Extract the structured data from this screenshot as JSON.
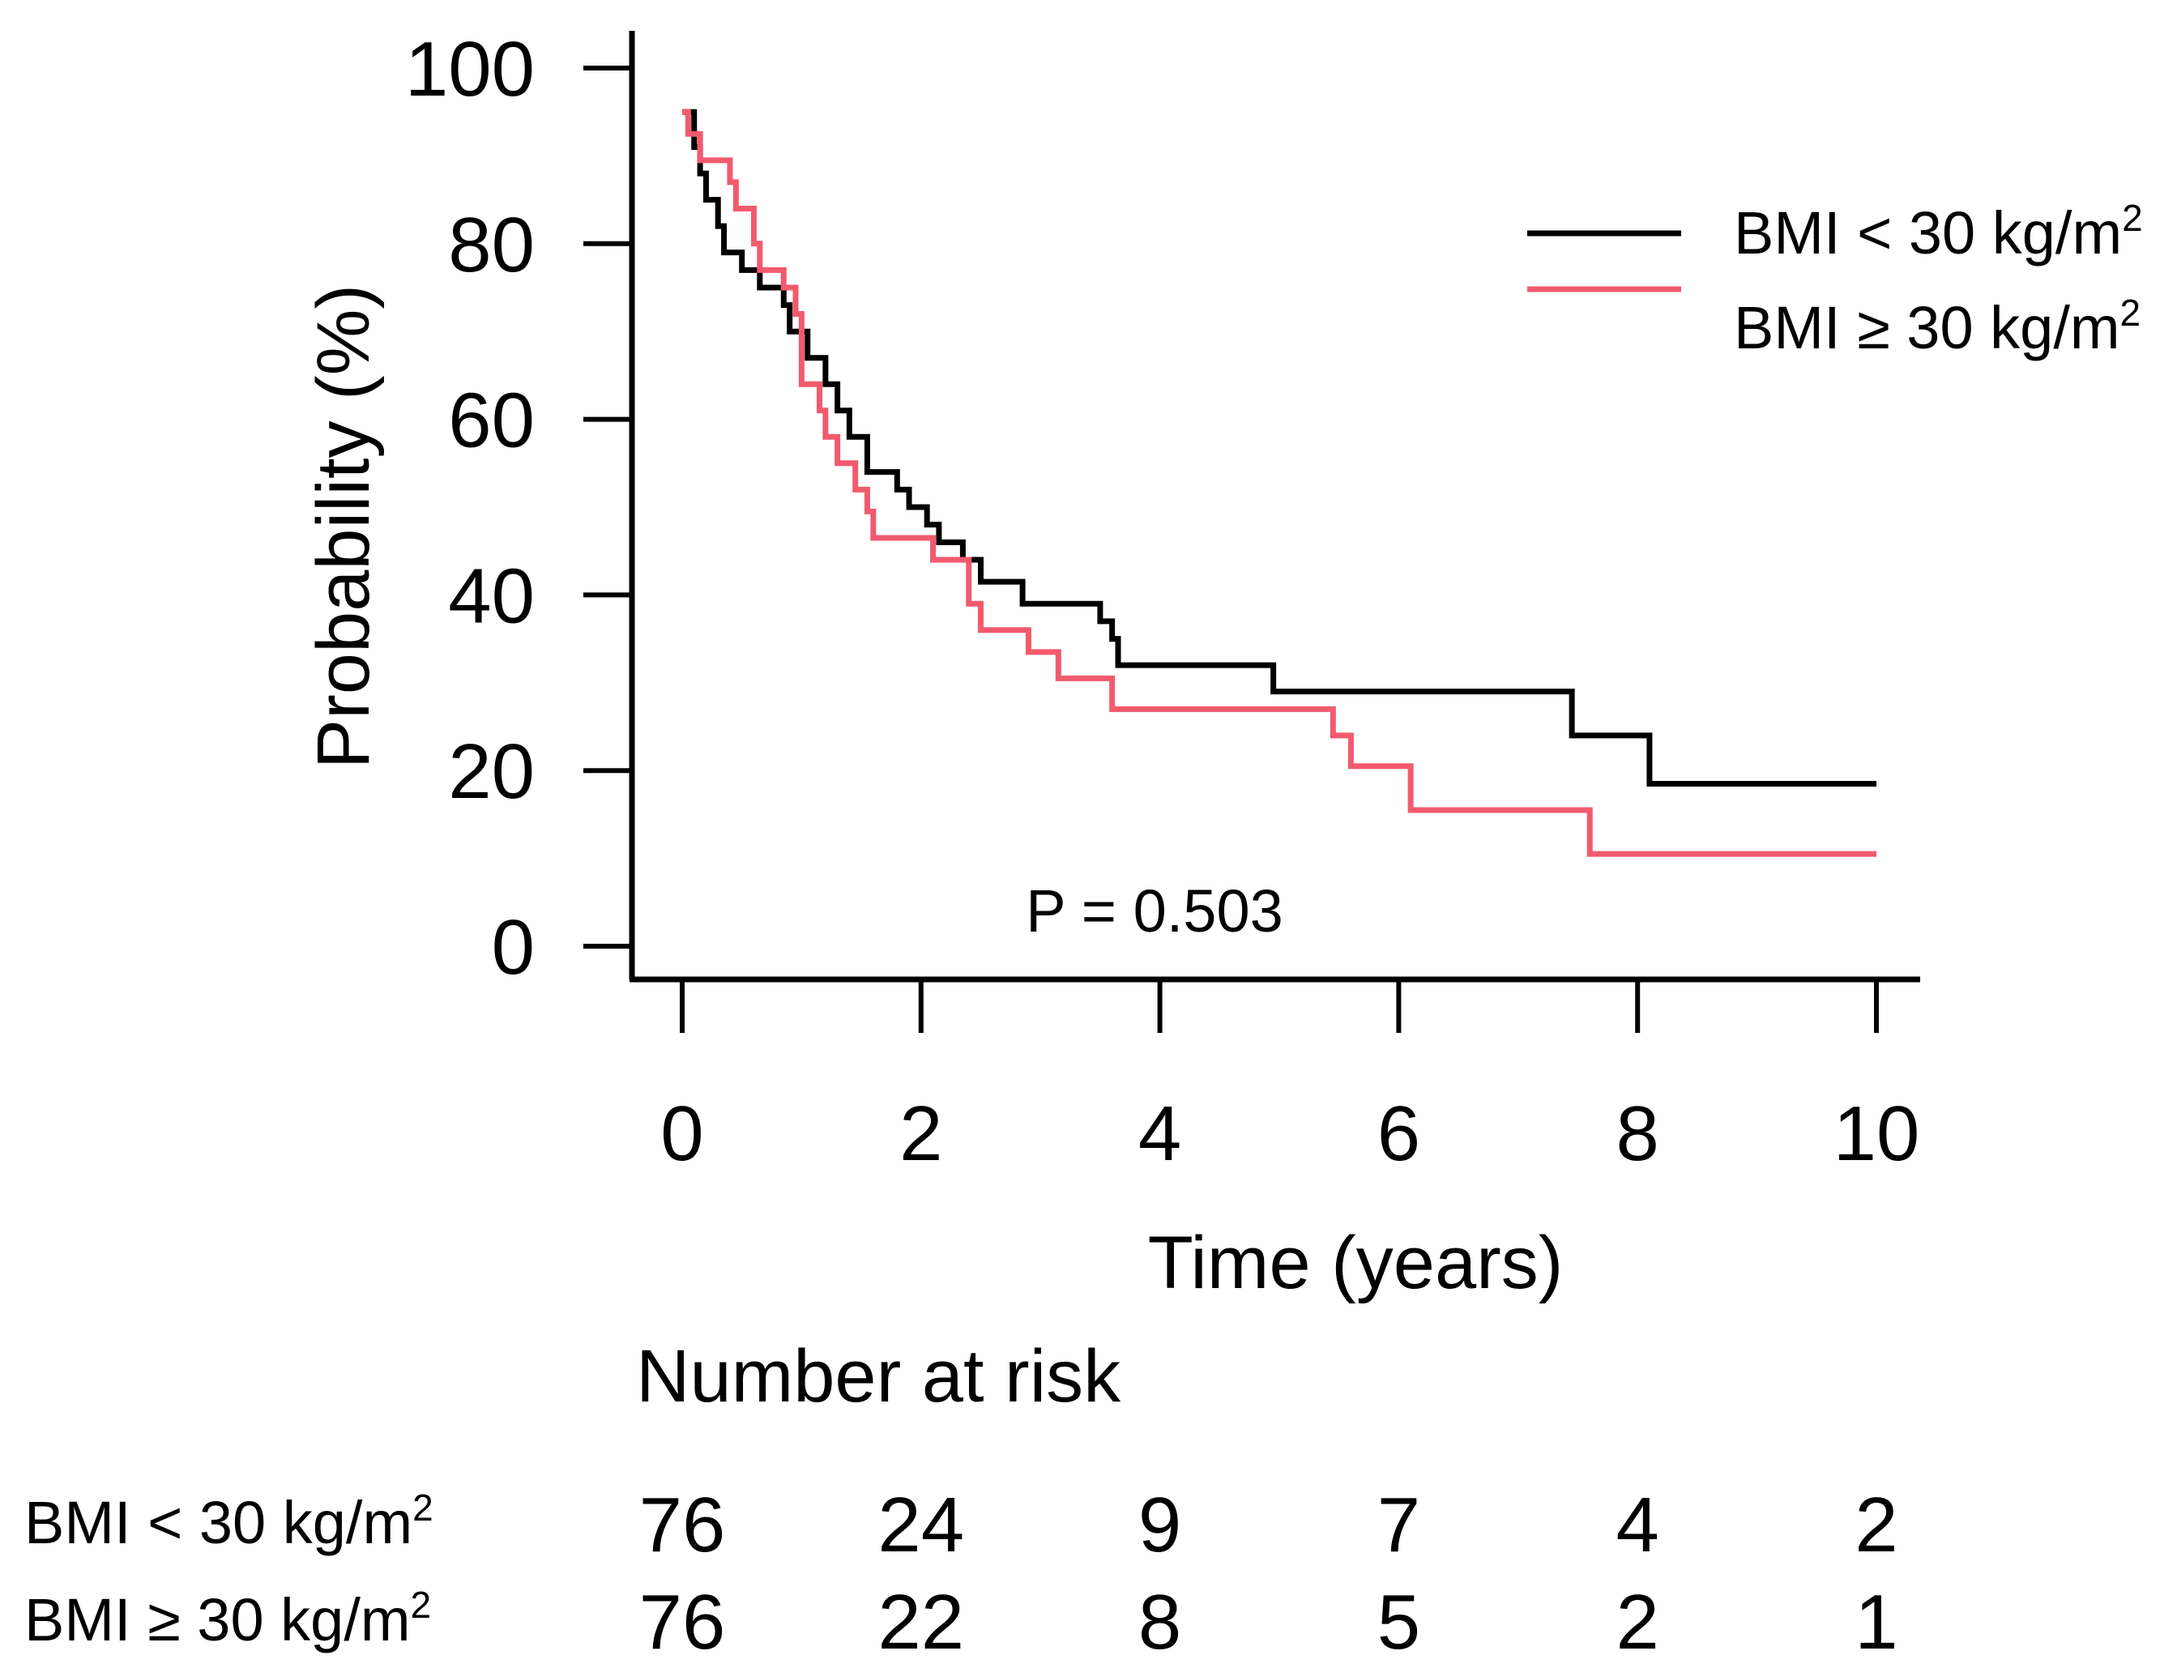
{
  "chart_data": {
    "type": "line",
    "subtype": "kaplan-meier",
    "xlabel": "Time (years)",
    "ylabel": "Probability (%)",
    "xlim": [
      0,
      10
    ],
    "ylim": [
      0,
      100
    ],
    "xticks": [
      "0",
      "2",
      "4",
      "6",
      "8",
      "10"
    ],
    "yticks": [
      "0",
      "20",
      "40",
      "60",
      "80",
      "100"
    ],
    "annotation": "P = 0.503",
    "legend_position": "top-right",
    "series": [
      {
        "name": "BMI < 30 kg/m²",
        "legend_text": "BMI < 30 kg/m",
        "sup": "2",
        "color": "#000000",
        "steps": [
          [
            0.0,
            95
          ],
          [
            0.1,
            91
          ],
          [
            0.15,
            88
          ],
          [
            0.2,
            85
          ],
          [
            0.3,
            82
          ],
          [
            0.35,
            79
          ],
          [
            0.5,
            77
          ],
          [
            0.65,
            75
          ],
          [
            0.85,
            73
          ],
          [
            0.9,
            70
          ],
          [
            1.05,
            67
          ],
          [
            1.2,
            64
          ],
          [
            1.3,
            61
          ],
          [
            1.4,
            58
          ],
          [
            1.55,
            54
          ],
          [
            1.8,
            52
          ],
          [
            1.9,
            50
          ],
          [
            2.05,
            48
          ],
          [
            2.15,
            46
          ],
          [
            2.35,
            44
          ],
          [
            2.5,
            41.5
          ],
          [
            2.85,
            39
          ],
          [
            3.5,
            37
          ],
          [
            3.6,
            35
          ],
          [
            3.65,
            32
          ],
          [
            4.95,
            29
          ],
          [
            7.45,
            24
          ],
          [
            8.1,
            18.5
          ],
          [
            10.0,
            18.5
          ]
        ]
      },
      {
        "name": "BMI ≥ 30 kg/m²",
        "legend_text": "BMI ≥ 30 kg/m",
        "sup": "2",
        "color": "#F25A6E",
        "steps": [
          [
            0.0,
            95
          ],
          [
            0.05,
            92.5
          ],
          [
            0.15,
            89.5
          ],
          [
            0.4,
            87
          ],
          [
            0.45,
            84
          ],
          [
            0.6,
            80
          ],
          [
            0.65,
            77
          ],
          [
            0.85,
            75
          ],
          [
            0.95,
            72
          ],
          [
            1.0,
            68
          ],
          [
            1.0,
            64
          ],
          [
            1.15,
            61
          ],
          [
            1.2,
            58
          ],
          [
            1.3,
            55
          ],
          [
            1.45,
            52
          ],
          [
            1.55,
            49.5
          ],
          [
            1.6,
            46.5
          ],
          [
            2.1,
            44
          ],
          [
            2.4,
            39
          ],
          [
            2.5,
            36
          ],
          [
            2.9,
            33.5
          ],
          [
            3.15,
            30.5
          ],
          [
            3.6,
            27
          ],
          [
            5.45,
            24
          ],
          [
            5.6,
            20.5
          ],
          [
            6.1,
            15.5
          ],
          [
            7.6,
            10.5
          ],
          [
            10.0,
            10.5
          ]
        ]
      }
    ]
  },
  "risk_table": {
    "title": "Number at risk",
    "rows": [
      {
        "label": "BMI < 30 kg/m",
        "sup": "2",
        "values": [
          "76",
          "24",
          "9",
          "7",
          "4",
          "2"
        ]
      },
      {
        "label": "BMI ≥ 30 kg/m",
        "sup": "2",
        "values": [
          "76",
          "22",
          "8",
          "5",
          "2",
          "1"
        ]
      }
    ]
  }
}
